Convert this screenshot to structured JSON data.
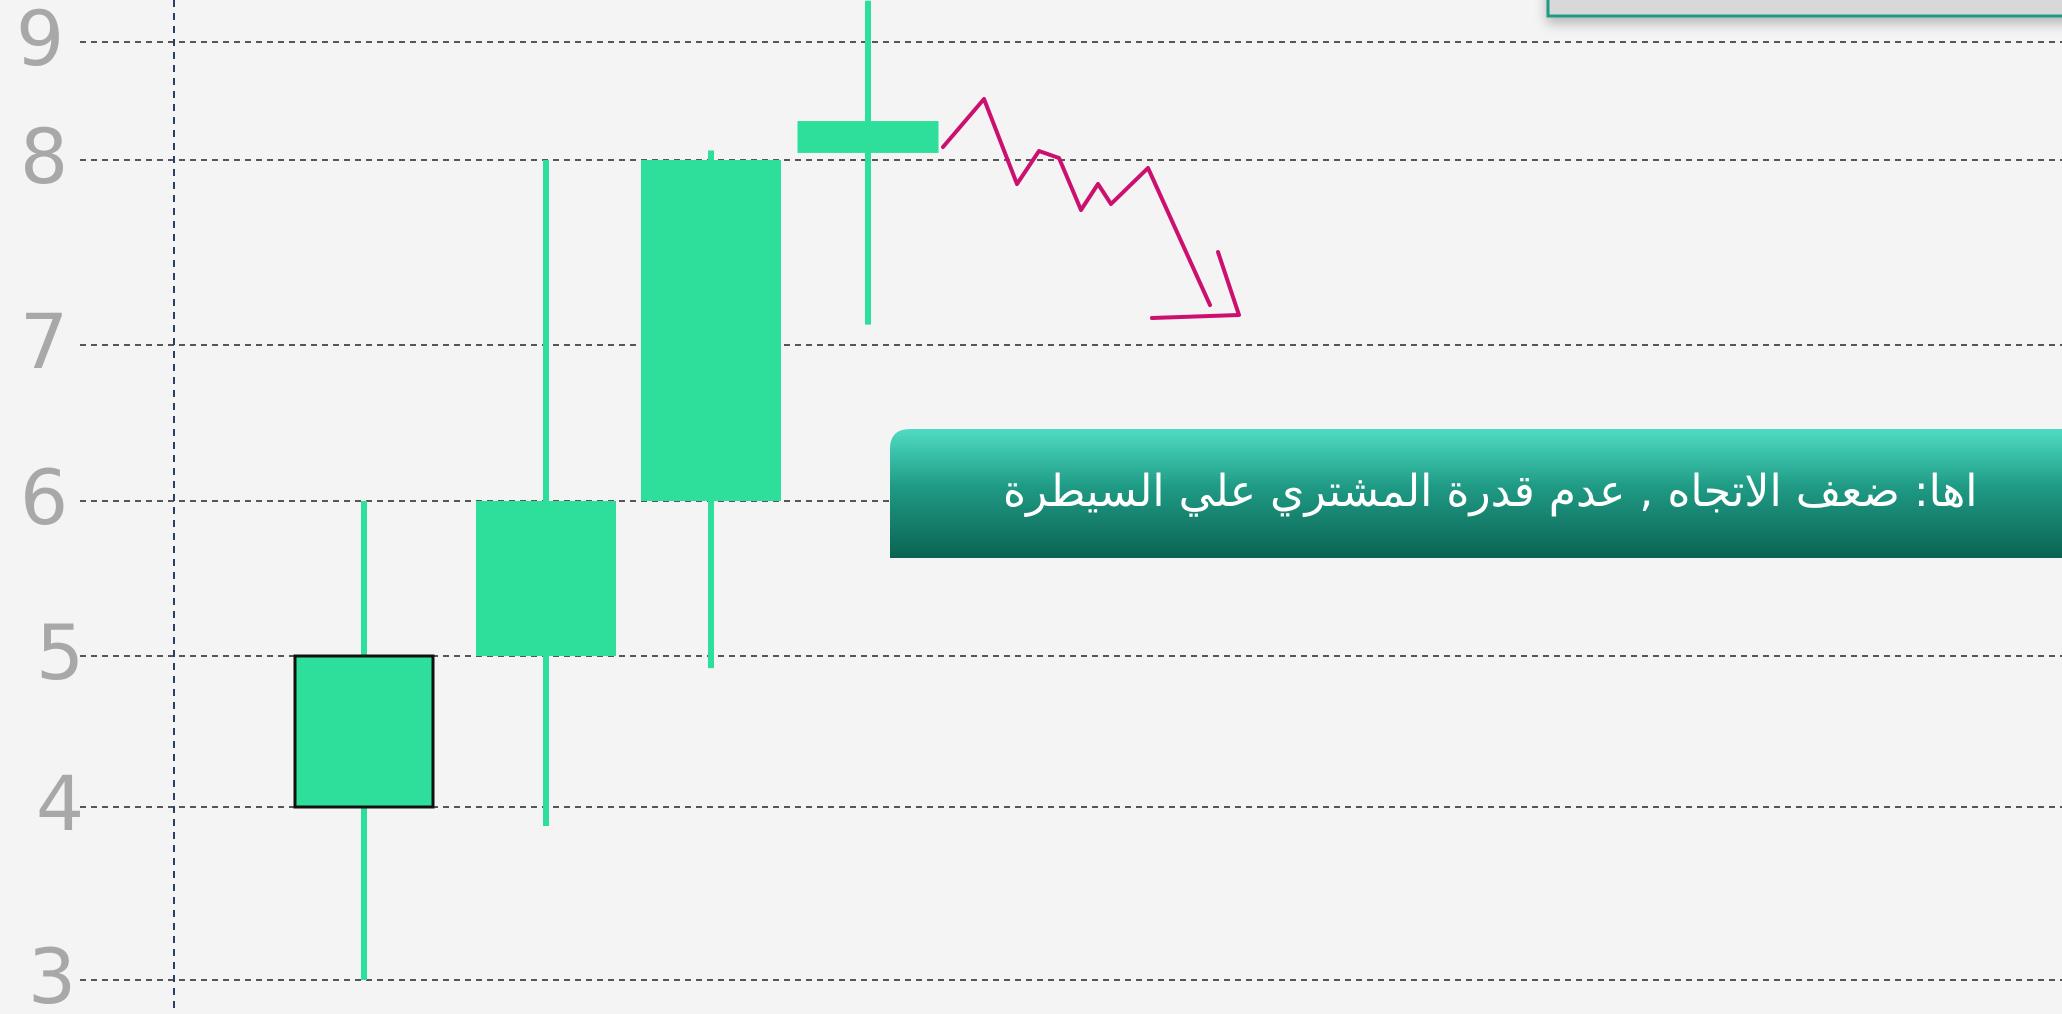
{
  "chart_data": {
    "type": "candlestick",
    "ylim": [
      2.8,
      9.35
    ],
    "yticks": [
      3,
      4,
      5,
      6,
      7,
      8,
      9
    ],
    "grid": true,
    "color": "#2ddf9a",
    "candles": [
      {
        "open": 4,
        "close": 5,
        "high": 6,
        "low": 3
      },
      {
        "open": 5,
        "close": 6,
        "high": 8,
        "low": 3.89
      },
      {
        "open": 6,
        "close": 8,
        "high": 8.08,
        "low": 4.92
      },
      {
        "open": 8.06,
        "close": 8.33,
        "high": 9.4,
        "low": 7.11
      }
    ],
    "annotation": "اها: ضعف الاتجاه , عدم قدرة المشتري علي السيطرة"
  }
}
